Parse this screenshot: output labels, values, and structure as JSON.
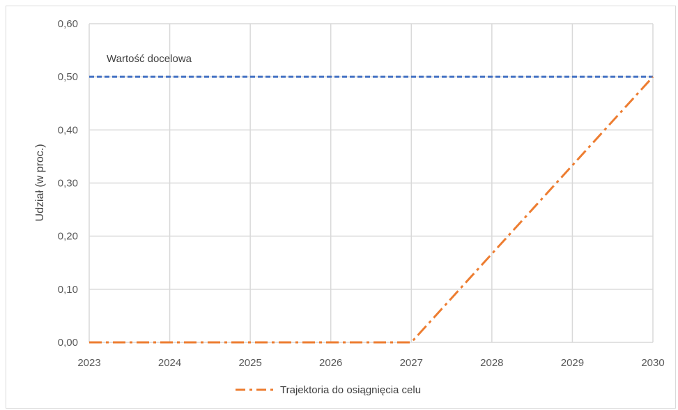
{
  "chart_data": {
    "type": "line",
    "title": "",
    "xlabel": "",
    "ylabel": "Udział (w proc.)",
    "x": [
      2023,
      2024,
      2025,
      2026,
      2027,
      2028,
      2029,
      2030
    ],
    "x_tick_labels": [
      "2023",
      "2024",
      "2025",
      "2026",
      "2027",
      "2028",
      "2029",
      "2030"
    ],
    "ylim": [
      0,
      0.6
    ],
    "y_ticks": [
      0,
      0.1,
      0.2,
      0.3,
      0.4,
      0.5,
      0.6
    ],
    "y_tick_labels": [
      "0,00",
      "0,10",
      "0,20",
      "0,30",
      "0,40",
      "0,50",
      "0,60"
    ],
    "grid": true,
    "legend_position": "bottom",
    "series": [
      {
        "name": "Trajektoria do osiągnięcia celu",
        "color": "#ed7d31",
        "line_style": "dash-dot",
        "values": [
          0,
          0,
          0,
          0,
          0,
          0.1667,
          0.3333,
          0.5
        ]
      }
    ],
    "reference_lines": [
      {
        "label": "Wartość docelowa",
        "value": 0.5,
        "color": "#4472c4",
        "line_style": "dashed"
      }
    ]
  }
}
